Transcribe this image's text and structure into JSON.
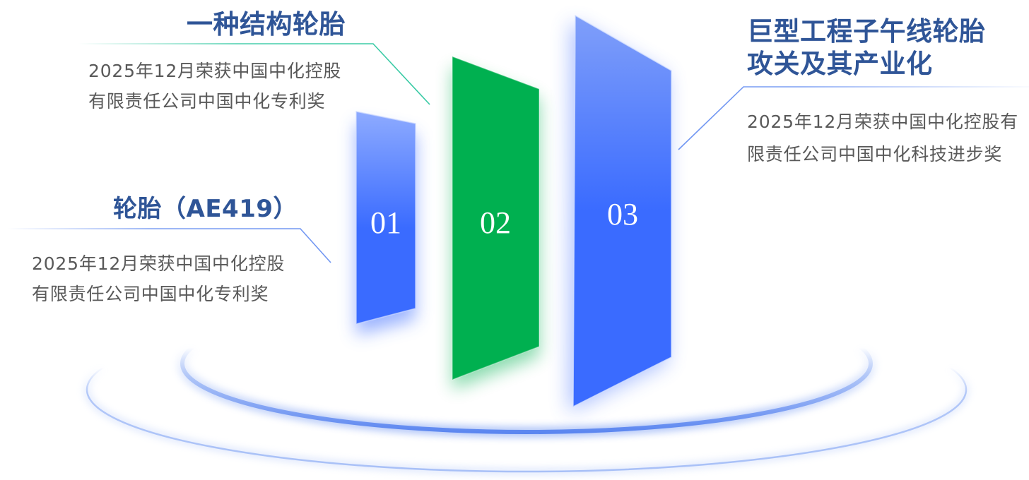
{
  "colors": {
    "title": "#2f5597",
    "description": "#595959",
    "number": "#ffffff",
    "ring": "#5a85f0",
    "ring_light": "#a8c0f7",
    "connector_blue": "#6f95f2",
    "connector_teal": "#35c9a3"
  },
  "awards": [
    {
      "number": "01",
      "title": [
        "轮胎（AE419）"
      ],
      "description": [
        "2025年12月荣获中国中化控股",
        "有限责任公司中国中化专利奖"
      ],
      "panel_top": "#8eabff",
      "panel_bottom": "#3a6bff"
    },
    {
      "number": "02",
      "title": [
        "一种结构轮胎"
      ],
      "description": [
        "2025年12月荣获中国中化控股",
        "有限责任公司中国中化专利奖"
      ],
      "panel_top": "#00b050",
      "panel_bottom": "#00b050"
    },
    {
      "number": "03",
      "title": [
        "巨型工程子午线轮胎",
        "攻关及其产业化"
      ],
      "description": [
        "2025年12月荣获中国中化控股有",
        "限责任公司中国中化科技进步奖"
      ],
      "panel_top": "#809ff9",
      "panel_bottom": "#3a6bff"
    }
  ]
}
